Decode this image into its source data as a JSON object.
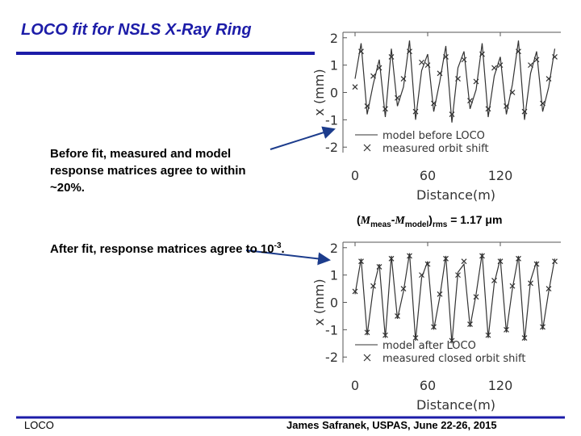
{
  "slide": {
    "title": "LOCO fit for NSLS X-Ray Ring",
    "note_before": "Before fit, measured and model response matrices agree to within ~20%.",
    "rms": [
      "(",
      "M",
      "meas",
      "-",
      "M",
      "model",
      ")",
      "rms",
      " = 1.17 μm"
    ],
    "note_after": [
      "After fit, response matrices agree to 10",
      "-3",
      "."
    ],
    "footer_left": "LOCO",
    "footer_right": "James Safranek, USPAS, June 22-26, 2015"
  },
  "chart_data": [
    {
      "type": "line",
      "ylabel": "x (mm)",
      "xlabel": "Distance(m)",
      "x": [
        0,
        5,
        10,
        15,
        20,
        25,
        30,
        35,
        40,
        45,
        50,
        55,
        60,
        65,
        70,
        75,
        80,
        85,
        90,
        95,
        100,
        105,
        110,
        115,
        120,
        125,
        130,
        135,
        140,
        145,
        150,
        155,
        160,
        165
      ],
      "series": [
        {
          "name": "model before LOCO",
          "color": "#333333",
          "values": [
            0.5,
            1.8,
            -0.8,
            0.3,
            1.2,
            -0.9,
            1.6,
            -0.5,
            0.2,
            1.9,
            -1.0,
            0.8,
            1.4,
            -0.7,
            0.4,
            1.7,
            -1.1,
            0.9,
            1.5,
            -0.6,
            0.1,
            1.8,
            -0.9,
            0.6,
            1.3,
            -0.8,
            0.3,
            1.9,
            -1.0,
            0.7,
            1.5,
            -0.7,
            0.2,
            1.6
          ]
        },
        {
          "name": "measured orbit shift",
          "color": "#333333",
          "marker": "X",
          "values": [
            0.2,
            1.5,
            -0.5,
            0.6,
            0.9,
            -0.6,
            1.3,
            -0.2,
            0.5,
            1.5,
            -0.7,
            1.1,
            1.0,
            -0.4,
            0.7,
            1.3,
            -0.8,
            0.5,
            1.2,
            -0.3,
            0.4,
            1.4,
            -0.6,
            0.9,
            1.0,
            -0.5,
            0.0,
            1.5,
            -0.7,
            1.0,
            1.2,
            -0.4,
            0.5,
            1.3
          ]
        }
      ],
      "xlim": [
        -10,
        170
      ],
      "xticks": [
        0,
        60,
        120
      ],
      "ylim": [
        -2.2,
        2.2
      ],
      "yticks": [
        2,
        1,
        0,
        -1,
        -2
      ]
    },
    {
      "type": "line",
      "ylabel": "x (mm)",
      "xlabel": "Distance(m)",
      "x": [
        0,
        5,
        10,
        15,
        20,
        25,
        30,
        35,
        40,
        45,
        50,
        55,
        60,
        65,
        70,
        75,
        80,
        85,
        90,
        95,
        100,
        105,
        110,
        115,
        120,
        125,
        130,
        135,
        140,
        145,
        150,
        155,
        160,
        165
      ],
      "series": [
        {
          "name": "model after LOCO",
          "color": "#333333",
          "values": [
            0.3,
            1.6,
            -1.2,
            0.5,
            1.4,
            -1.3,
            1.7,
            -0.6,
            0.4,
            1.8,
            -1.4,
            0.9,
            1.5,
            -1.0,
            0.2,
            1.7,
            -1.5,
            1.1,
            1.4,
            -0.9,
            0.3,
            1.8,
            -1.3,
            0.7,
            1.6,
            -1.1,
            0.5,
            1.7,
            -1.4,
            0.8,
            1.5,
            -1.0,
            0.4,
            1.6
          ]
        },
        {
          "name": "measured closed orbit shift",
          "color": "#333333",
          "marker": "X",
          "values": [
            0.4,
            1.5,
            -1.1,
            0.6,
            1.3,
            -1.2,
            1.6,
            -0.5,
            0.5,
            1.7,
            -1.3,
            1.0,
            1.4,
            -0.9,
            0.3,
            1.6,
            -1.4,
            1.0,
            1.5,
            -0.8,
            0.2,
            1.7,
            -1.2,
            0.8,
            1.5,
            -1.0,
            0.6,
            1.6,
            -1.3,
            0.7,
            1.4,
            -0.9,
            0.5,
            1.5
          ]
        }
      ],
      "xlim": [
        -10,
        170
      ],
      "xticks": [
        0,
        60,
        120
      ],
      "ylim": [
        -2.2,
        2.2
      ],
      "yticks": [
        2,
        1,
        0,
        -1,
        -2
      ]
    }
  ]
}
